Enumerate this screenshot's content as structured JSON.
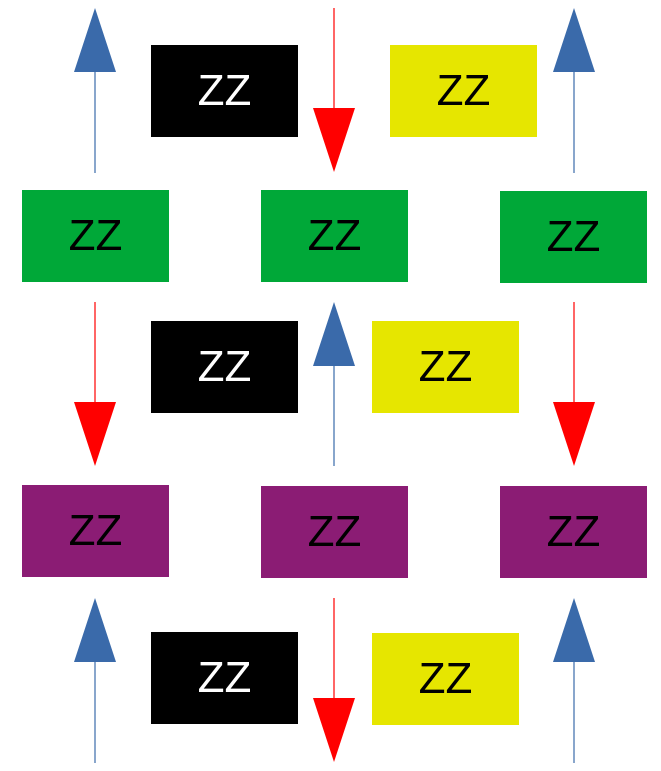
{
  "colors": {
    "black": "#000000",
    "yellow": "#e6e600",
    "green": "#00a838",
    "purple": "#8b1c74",
    "white_text": "#ffffff",
    "black_text": "#000000",
    "blue_arrow": "#3a6aaa",
    "red_arrow": "#ff0000"
  },
  "boxes": [
    {
      "label": "ZZ",
      "fill": "black"
    },
    {
      "label": "ZZ",
      "fill": "yellow"
    },
    {
      "label": "ZZ",
      "fill": "green"
    },
    {
      "label": "ZZ",
      "fill": "green"
    },
    {
      "label": "ZZ",
      "fill": "green"
    },
    {
      "label": "ZZ",
      "fill": "black"
    },
    {
      "label": "ZZ",
      "fill": "yellow"
    },
    {
      "label": "ZZ",
      "fill": "purple"
    },
    {
      "label": "ZZ",
      "fill": "purple"
    },
    {
      "label": "ZZ",
      "fill": "purple"
    },
    {
      "label": "ZZ",
      "fill": "black"
    },
    {
      "label": "ZZ",
      "fill": "yellow"
    }
  ],
  "arrows": [
    {
      "direction": "up",
      "color": "blue_arrow"
    },
    {
      "direction": "down",
      "color": "red_arrow"
    },
    {
      "direction": "up",
      "color": "blue_arrow"
    },
    {
      "direction": "down",
      "color": "red_arrow"
    },
    {
      "direction": "up",
      "color": "blue_arrow"
    },
    {
      "direction": "down",
      "color": "red_arrow"
    },
    {
      "direction": "up",
      "color": "blue_arrow"
    },
    {
      "direction": "down",
      "color": "red_arrow"
    },
    {
      "direction": "up",
      "color": "blue_arrow"
    }
  ]
}
